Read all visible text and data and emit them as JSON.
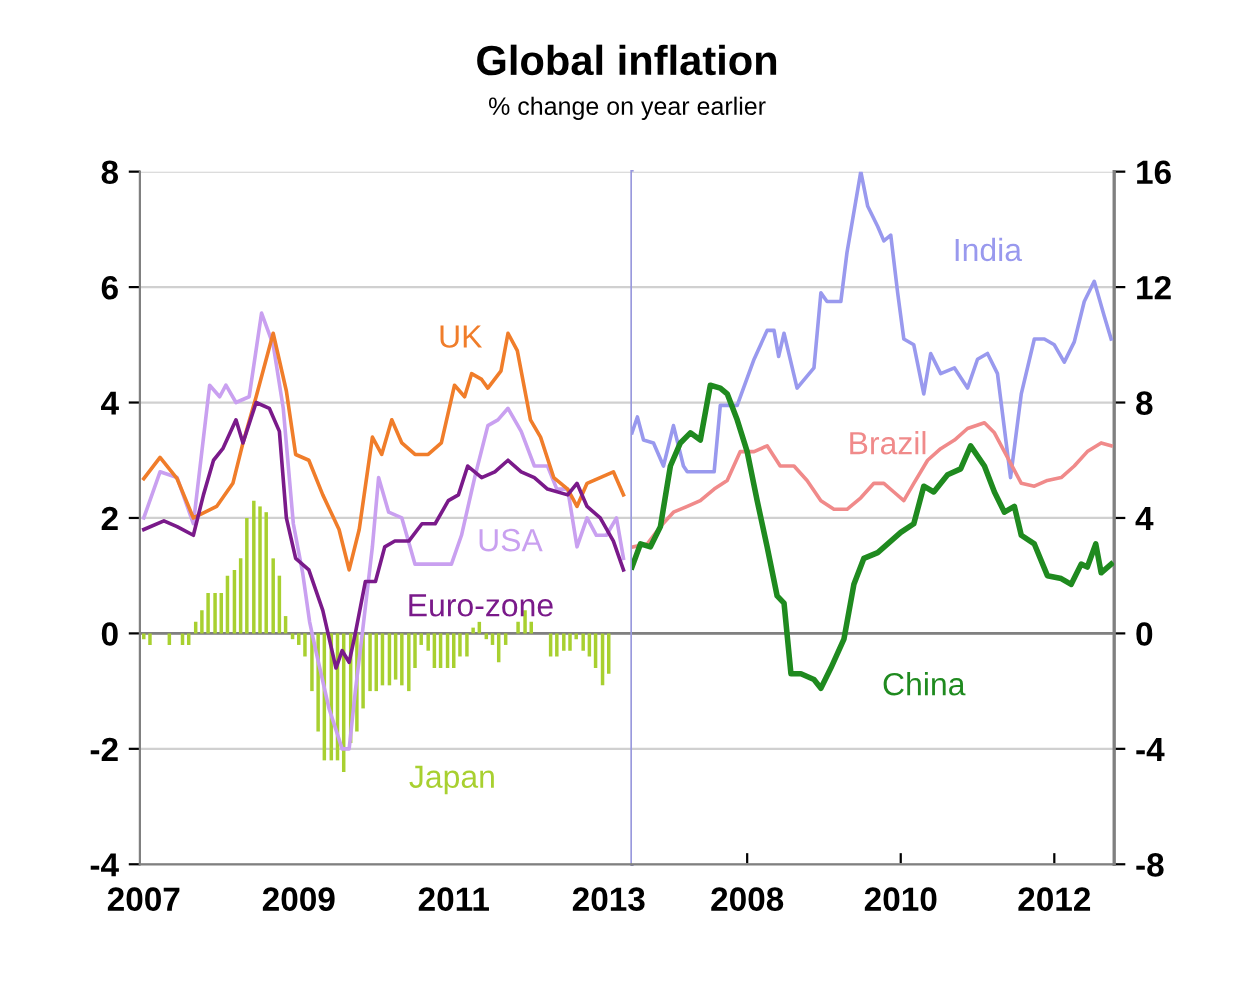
{
  "chart_data": [
    {
      "type": "line",
      "title": "Global inflation",
      "subtitle": "% change on year earlier",
      "xlim": [
        2006.95,
        2013.3
      ],
      "xticks": [
        2007,
        2009,
        2011,
        2013
      ],
      "ylim": [
        -4,
        8
      ],
      "yticks": [
        -4,
        -2,
        0,
        2,
        4,
        6,
        8
      ],
      "grid": "y",
      "legend": false,
      "series": [
        {
          "name": "Japan",
          "type": "bar",
          "color": "#a8d030",
          "x": [
            2007.0,
            2007.08,
            2007.17,
            2007.25,
            2007.33,
            2007.42,
            2007.5,
            2007.58,
            2007.67,
            2007.75,
            2007.83,
            2007.92,
            2008.0,
            2008.08,
            2008.17,
            2008.25,
            2008.33,
            2008.42,
            2008.5,
            2008.58,
            2008.67,
            2008.75,
            2008.83,
            2008.92,
            2009.0,
            2009.08,
            2009.17,
            2009.25,
            2009.33,
            2009.42,
            2009.5,
            2009.58,
            2009.67,
            2009.75,
            2009.83,
            2009.92,
            2010.0,
            2010.08,
            2010.17,
            2010.25,
            2010.33,
            2010.42,
            2010.5,
            2010.58,
            2010.67,
            2010.75,
            2010.83,
            2010.92,
            2011.0,
            2011.08,
            2011.17,
            2011.25,
            2011.33,
            2011.42,
            2011.5,
            2011.58,
            2011.67,
            2011.75,
            2011.83,
            2011.92,
            2012.0,
            2012.08,
            2012.17,
            2012.25,
            2012.33,
            2012.42,
            2012.5,
            2012.58,
            2012.67,
            2012.75,
            2012.83,
            2012.92,
            2013.0
          ],
          "values": [
            -0.1,
            -0.2,
            0,
            0,
            -0.2,
            0,
            -0.2,
            -0.2,
            0.2,
            0.4,
            0.7,
            0.7,
            0.7,
            1.0,
            1.1,
            1.3,
            2.0,
            2.3,
            2.2,
            2.1,
            1.3,
            1.0,
            0.3,
            -0.1,
            -0.2,
            -0.4,
            -1.0,
            -1.7,
            -2.2,
            -2.2,
            -2.2,
            -2.4,
            -1.9,
            -1.7,
            -1.3,
            -1.0,
            -1.0,
            -0.9,
            -0.9,
            -0.8,
            -0.9,
            -1.0,
            -0.6,
            -0.2,
            -0.3,
            -0.6,
            -0.6,
            -0.6,
            -0.6,
            -0.4,
            -0.4,
            0.1,
            0.2,
            -0.1,
            -0.2,
            -0.5,
            -0.2,
            0,
            0.2,
            0.4,
            0.2,
            0,
            0,
            -0.4,
            -0.4,
            -0.3,
            -0.3,
            -0.1,
            -0.3,
            -0.4,
            -0.6,
            -0.9,
            -0.7
          ]
        },
        {
          "name": "USA",
          "color": "#c9a0f0",
          "x": [
            2007.0,
            2007.21,
            2007.43,
            2007.64,
            2007.85,
            2007.98,
            2008.06,
            2008.19,
            2008.36,
            2008.52,
            2008.67,
            2008.8,
            2008.93,
            2009.05,
            2009.14,
            2009.22,
            2009.39,
            2009.56,
            2009.65,
            2009.73,
            2009.82,
            2009.95,
            2010.03,
            2010.16,
            2010.33,
            2010.5,
            2010.67,
            2010.84,
            2010.97,
            2011.1,
            2011.27,
            2011.44,
            2011.57,
            2011.7,
            2011.87,
            2012.04,
            2012.21,
            2012.33,
            2012.47,
            2012.59,
            2012.72,
            2012.84,
            2012.97,
            2013.1,
            2013.19
          ],
          "values": [
            2.0,
            2.8,
            2.7,
            1.9,
            4.3,
            4.1,
            4.3,
            4.0,
            4.1,
            5.55,
            5.0,
            3.9,
            1.9,
            1.05,
            0.2,
            -0.3,
            -1.3,
            -2.0,
            -2.0,
            -1.0,
            0.0,
            1.5,
            2.7,
            2.1,
            2.0,
            1.2,
            1.2,
            1.2,
            1.2,
            1.7,
            2.7,
            3.6,
            3.7,
            3.9,
            3.5,
            2.9,
            2.9,
            2.5,
            2.5,
            1.5,
            2.0,
            1.7,
            1.7,
            2.0,
            1.3
          ]
        },
        {
          "name": "UK",
          "color": "#f07d2a",
          "x": [
            2007.0,
            2007.21,
            2007.43,
            2007.64,
            2007.94,
            2008.15,
            2008.28,
            2008.45,
            2008.67,
            2008.84,
            2008.96,
            2009.13,
            2009.31,
            2009.52,
            2009.65,
            2009.78,
            2009.95,
            2010.07,
            2010.2,
            2010.33,
            2010.5,
            2010.67,
            2010.84,
            2011.01,
            2011.14,
            2011.23,
            2011.36,
            2011.44,
            2011.61,
            2011.7,
            2011.82,
            2011.99,
            2012.12,
            2012.29,
            2012.47,
            2012.59,
            2012.72,
            2012.89,
            2013.06,
            2013.19
          ],
          "values": [
            2.68,
            3.05,
            2.68,
            2.0,
            2.2,
            2.6,
            3.3,
            4.1,
            5.2,
            4.2,
            3.1,
            3.0,
            2.4,
            1.8,
            1.1,
            1.8,
            3.4,
            3.1,
            3.7,
            3.3,
            3.1,
            3.1,
            3.3,
            4.3,
            4.1,
            4.5,
            4.4,
            4.25,
            4.55,
            5.2,
            4.9,
            3.7,
            3.4,
            2.7,
            2.5,
            2.2,
            2.6,
            2.7,
            2.8,
            2.4
          ]
        },
        {
          "name": "Euro-zone",
          "color": "#7a1a8a",
          "x": [
            2007.0,
            2007.26,
            2007.43,
            2007.64,
            2007.77,
            2007.9,
            2008.02,
            2008.19,
            2008.28,
            2008.45,
            2008.62,
            2008.75,
            2008.84,
            2008.96,
            2009.13,
            2009.31,
            2009.48,
            2009.56,
            2009.65,
            2009.73,
            2009.86,
            2009.99,
            2010.11,
            2010.24,
            2010.42,
            2010.59,
            2010.76,
            2010.93,
            2011.06,
            2011.18,
            2011.36,
            2011.53,
            2011.7,
            2011.87,
            2012.04,
            2012.21,
            2012.47,
            2012.59,
            2012.72,
            2012.89,
            2013.06,
            2013.19
          ],
          "values": [
            1.8,
            1.95,
            1.85,
            1.7,
            2.4,
            3.0,
            3.2,
            3.7,
            3.3,
            4.0,
            3.9,
            3.5,
            2.0,
            1.3,
            1.1,
            0.4,
            -0.6,
            -0.3,
            -0.5,
            0.0,
            0.9,
            0.9,
            1.5,
            1.6,
            1.6,
            1.9,
            1.9,
            2.3,
            2.4,
            2.9,
            2.7,
            2.8,
            3.0,
            2.8,
            2.7,
            2.5,
            2.4,
            2.6,
            2.2,
            2.0,
            1.6,
            1.1
          ]
        }
      ]
    },
    {
      "type": "line",
      "xlim": [
        2006.5,
        2012.78
      ],
      "xticks": [
        {
          "value": 2008,
          "label": "2008"
        },
        {
          "value": 2010,
          "label": "2010"
        },
        {
          "value": 2012,
          "label": "2012"
        }
      ],
      "y2lim": [
        -8,
        16
      ],
      "y2ticks": [
        -8,
        -4,
        0,
        4,
        8,
        12,
        16
      ],
      "grid": "y",
      "legend": false,
      "series": [
        {
          "name": "India",
          "axis": "y2",
          "color": "#9999ee",
          "x": [
            2006.5,
            2006.57,
            2006.65,
            2006.78,
            2006.91,
            2007.04,
            2007.17,
            2007.22,
            2007.57,
            2007.65,
            2007.87,
            2008.09,
            2008.26,
            2008.35,
            2008.41,
            2008.48,
            2008.65,
            2008.87,
            2008.96,
            2009.04,
            2009.22,
            2009.3,
            2009.48,
            2009.57,
            2009.7,
            2009.78,
            2009.87,
            2009.96,
            2010.04,
            2010.17,
            2010.3,
            2010.39,
            2010.52,
            2010.7,
            2010.87,
            2011.0,
            2011.13,
            2011.26,
            2011.43,
            2011.57,
            2011.74,
            2011.87,
            2012.0,
            2012.13,
            2012.26,
            2012.39,
            2012.52,
            2012.65,
            2012.74
          ],
          "values": [
            6.95,
            7.5,
            6.7,
            6.6,
            5.8,
            7.2,
            5.8,
            5.6,
            5.6,
            7.9,
            7.9,
            9.5,
            10.5,
            10.5,
            9.6,
            10.4,
            8.5,
            9.2,
            11.8,
            11.5,
            11.5,
            13.2,
            16.0,
            14.8,
            14.1,
            13.6,
            13.8,
            11.8,
            10.2,
            10.0,
            8.3,
            9.7,
            9.0,
            9.2,
            8.5,
            9.5,
            9.7,
            9.0,
            5.4,
            8.3,
            10.2,
            10.2,
            10.0,
            9.4,
            10.1,
            11.5,
            12.2,
            11.0,
            10.2
          ]
        },
        {
          "name": "Brazil",
          "axis": "y2",
          "color": "#f08a8a",
          "x": [
            2006.52,
            2006.7,
            2006.87,
            2007.04,
            2007.22,
            2007.39,
            2007.57,
            2007.74,
            2007.91,
            2008.09,
            2008.26,
            2008.43,
            2008.61,
            2008.78,
            2008.96,
            2009.13,
            2009.3,
            2009.48,
            2009.65,
            2009.78,
            2009.91,
            2010.04,
            2010.17,
            2010.35,
            2010.52,
            2010.7,
            2010.87,
            2011.09,
            2011.22,
            2011.39,
            2011.57,
            2011.74,
            2011.91,
            2012.09,
            2012.26,
            2012.43,
            2012.61,
            2012.74
          ],
          "values": [
            3.0,
            3.1,
            3.7,
            4.2,
            4.4,
            4.6,
            5.0,
            5.3,
            6.3,
            6.3,
            6.5,
            5.8,
            5.8,
            5.3,
            4.6,
            4.3,
            4.3,
            4.7,
            5.2,
            5.2,
            4.9,
            4.6,
            5.2,
            6.0,
            6.4,
            6.7,
            7.1,
            7.3,
            6.95,
            6.1,
            5.2,
            5.1,
            5.3,
            5.4,
            5.8,
            6.3,
            6.6,
            6.5
          ]
        },
        {
          "name": "China",
          "axis": "y2",
          "color": "#1f8a1f",
          "x": [
            2006.5,
            2006.61,
            2006.74,
            2006.87,
            2007.0,
            2007.13,
            2007.26,
            2007.39,
            2007.52,
            2007.65,
            2007.74,
            2007.87,
            2008.0,
            2008.13,
            2008.26,
            2008.39,
            2008.48,
            2008.57,
            2008.7,
            2008.87,
            2008.96,
            2009.09,
            2009.26,
            2009.39,
            2009.52,
            2009.7,
            2009.83,
            2010.0,
            2010.17,
            2010.3,
            2010.43,
            2010.61,
            2010.78,
            2010.91,
            2011.09,
            2011.22,
            2011.35,
            2011.48,
            2011.57,
            2011.74,
            2011.91,
            2012.09,
            2012.22,
            2012.35,
            2012.43,
            2012.54,
            2012.61,
            2012.74
          ],
          "values": [
            2.3,
            3.1,
            3.0,
            3.7,
            5.8,
            6.6,
            6.95,
            6.7,
            8.6,
            8.5,
            8.3,
            7.4,
            6.3,
            4.6,
            3.0,
            1.3,
            1.05,
            -1.4,
            -1.4,
            -1.6,
            -1.9,
            -1.2,
            -0.2,
            1.7,
            2.6,
            2.8,
            3.1,
            3.5,
            3.8,
            5.1,
            4.9,
            5.5,
            5.7,
            6.5,
            5.8,
            4.9,
            4.2,
            4.4,
            3.4,
            3.1,
            2.0,
            1.9,
            1.7,
            2.4,
            2.3,
            3.1,
            2.1,
            2.4
          ]
        }
      ]
    }
  ]
}
